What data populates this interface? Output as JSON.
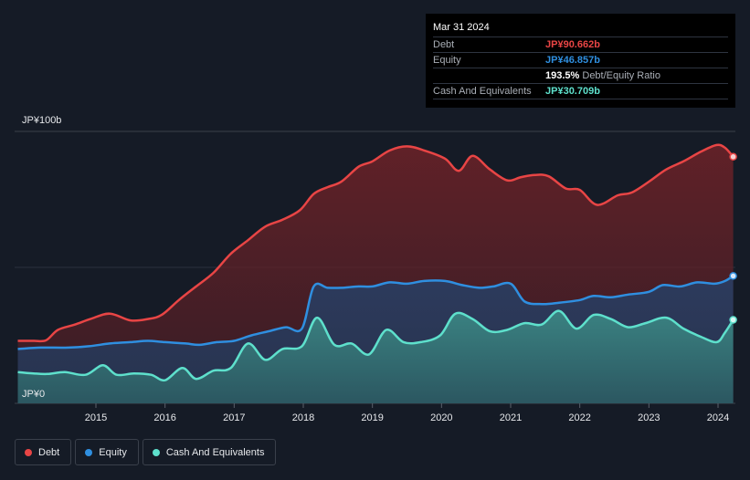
{
  "chart_data": {
    "type": "area",
    "title": "",
    "ylabel": "",
    "xlabel": "",
    "ylim": [
      0,
      100
    ],
    "y_tick_labels": [
      "JP¥100b",
      "JP¥0"
    ],
    "x_tick_labels": [
      "2015",
      "2016",
      "2017",
      "2018",
      "2019",
      "2020",
      "2021",
      "2022",
      "2023",
      "2024"
    ],
    "x_tick_values": [
      2015,
      2016,
      2017,
      2018,
      2019,
      2020,
      2021,
      2022,
      2023,
      2024
    ],
    "colors": {
      "debt": "#e84545",
      "equity": "#2f8fe0",
      "cash": "#5ee0cc"
    },
    "series": [
      {
        "name": "Debt",
        "color": "#e84545",
        "points": [
          [
            2013.87,
            23
          ],
          [
            2014.1,
            23
          ],
          [
            2014.28,
            23.2
          ],
          [
            2014.45,
            27
          ],
          [
            2014.7,
            29
          ],
          [
            2014.92,
            31
          ],
          [
            2015.2,
            33
          ],
          [
            2015.5,
            30.5
          ],
          [
            2015.75,
            31
          ],
          [
            2015.95,
            32.5
          ],
          [
            2016.2,
            38
          ],
          [
            2016.45,
            43
          ],
          [
            2016.7,
            48
          ],
          [
            2016.95,
            55
          ],
          [
            2017.2,
            60
          ],
          [
            2017.45,
            65
          ],
          [
            2017.7,
            67.5
          ],
          [
            2017.95,
            71
          ],
          [
            2018.15,
            77
          ],
          [
            2018.35,
            79.5
          ],
          [
            2018.55,
            81.5
          ],
          [
            2018.8,
            87
          ],
          [
            2019.0,
            89
          ],
          [
            2019.25,
            93
          ],
          [
            2019.5,
            94.5
          ],
          [
            2019.75,
            93
          ],
          [
            2020.05,
            90
          ],
          [
            2020.25,
            85.5
          ],
          [
            2020.45,
            91
          ],
          [
            2020.7,
            86
          ],
          [
            2020.95,
            82
          ],
          [
            2021.15,
            83.2
          ],
          [
            2021.35,
            84
          ],
          [
            2021.55,
            83.5
          ],
          [
            2021.8,
            79
          ],
          [
            2022.0,
            78.5
          ],
          [
            2022.25,
            73
          ],
          [
            2022.55,
            76.5
          ],
          [
            2022.75,
            77.5
          ],
          [
            2023.0,
            81.5
          ],
          [
            2023.25,
            86
          ],
          [
            2023.5,
            89
          ],
          [
            2023.75,
            92.5
          ],
          [
            2023.98,
            95
          ],
          [
            2024.1,
            94
          ],
          [
            2024.22,
            90.662
          ]
        ]
      },
      {
        "name": "Equity",
        "color": "#2f8fe0",
        "points": [
          [
            2013.87,
            20
          ],
          [
            2014.2,
            20.5
          ],
          [
            2014.6,
            20.5
          ],
          [
            2014.9,
            21
          ],
          [
            2015.2,
            22
          ],
          [
            2015.5,
            22.5
          ],
          [
            2015.75,
            23
          ],
          [
            2016.0,
            22.5
          ],
          [
            2016.3,
            22
          ],
          [
            2016.5,
            21.5
          ],
          [
            2016.75,
            22.5
          ],
          [
            2017.0,
            23
          ],
          [
            2017.25,
            25
          ],
          [
            2017.5,
            26.5
          ],
          [
            2017.75,
            28
          ],
          [
            2017.98,
            27.5
          ],
          [
            2018.15,
            43
          ],
          [
            2018.35,
            42.5
          ],
          [
            2018.55,
            42.5
          ],
          [
            2018.8,
            43
          ],
          [
            2019.0,
            43
          ],
          [
            2019.25,
            44.5
          ],
          [
            2019.5,
            44
          ],
          [
            2019.75,
            45
          ],
          [
            2020.05,
            45
          ],
          [
            2020.3,
            43.5
          ],
          [
            2020.55,
            42.5
          ],
          [
            2020.75,
            43
          ],
          [
            2021.0,
            44
          ],
          [
            2021.2,
            37.5
          ],
          [
            2021.45,
            36.5
          ],
          [
            2021.7,
            37
          ],
          [
            2022.0,
            38
          ],
          [
            2022.2,
            39.5
          ],
          [
            2022.45,
            39
          ],
          [
            2022.7,
            40
          ],
          [
            2023.0,
            41
          ],
          [
            2023.2,
            43.5
          ],
          [
            2023.45,
            43
          ],
          [
            2023.7,
            44.5
          ],
          [
            2023.95,
            44
          ],
          [
            2024.1,
            45
          ],
          [
            2024.22,
            46.857
          ]
        ]
      },
      {
        "name": "Cash And Equivalents",
        "color": "#5ee0cc",
        "points": [
          [
            2013.87,
            11.5
          ],
          [
            2014.1,
            11
          ],
          [
            2014.3,
            10.8
          ],
          [
            2014.55,
            11.5
          ],
          [
            2014.85,
            10.5
          ],
          [
            2015.1,
            14
          ],
          [
            2015.3,
            10.5
          ],
          [
            2015.55,
            11
          ],
          [
            2015.8,
            10.5
          ],
          [
            2016.0,
            8.5
          ],
          [
            2016.25,
            13
          ],
          [
            2016.45,
            9
          ],
          [
            2016.7,
            12
          ],
          [
            2016.95,
            13
          ],
          [
            2017.2,
            22
          ],
          [
            2017.45,
            16
          ],
          [
            2017.7,
            20
          ],
          [
            2017.98,
            21
          ],
          [
            2018.2,
            31.5
          ],
          [
            2018.45,
            21.5
          ],
          [
            2018.7,
            22
          ],
          [
            2018.95,
            18
          ],
          [
            2019.2,
            27
          ],
          [
            2019.45,
            22.5
          ],
          [
            2019.7,
            22.5
          ],
          [
            2019.98,
            25
          ],
          [
            2020.2,
            33
          ],
          [
            2020.45,
            31
          ],
          [
            2020.7,
            26.5
          ],
          [
            2020.95,
            27
          ],
          [
            2021.2,
            29.5
          ],
          [
            2021.45,
            29
          ],
          [
            2021.7,
            34
          ],
          [
            2021.95,
            27.5
          ],
          [
            2022.2,
            32.5
          ],
          [
            2022.45,
            31
          ],
          [
            2022.7,
            28
          ],
          [
            2022.95,
            29.5
          ],
          [
            2023.25,
            31.5
          ],
          [
            2023.5,
            27.5
          ],
          [
            2023.75,
            24.5
          ],
          [
            2023.98,
            22.5
          ],
          [
            2024.1,
            26
          ],
          [
            2024.22,
            30.709
          ]
        ]
      }
    ],
    "legend": [
      "Debt",
      "Equity",
      "Cash And Equivalents"
    ]
  },
  "tooltip": {
    "date": "Mar 31 2024",
    "rows": [
      {
        "label": "Debt",
        "value": "JP¥90.662b",
        "color": "#e84545"
      },
      {
        "label": "Equity",
        "value": "JP¥46.857b",
        "color": "#2f8fe0"
      },
      {
        "label": "",
        "value": "193.5%",
        "suffix": "Debt/Equity Ratio",
        "color": "#ffffff"
      },
      {
        "label": "Cash And Equivalents",
        "value": "JP¥30.709b",
        "color": "#5ee0cc"
      }
    ]
  }
}
